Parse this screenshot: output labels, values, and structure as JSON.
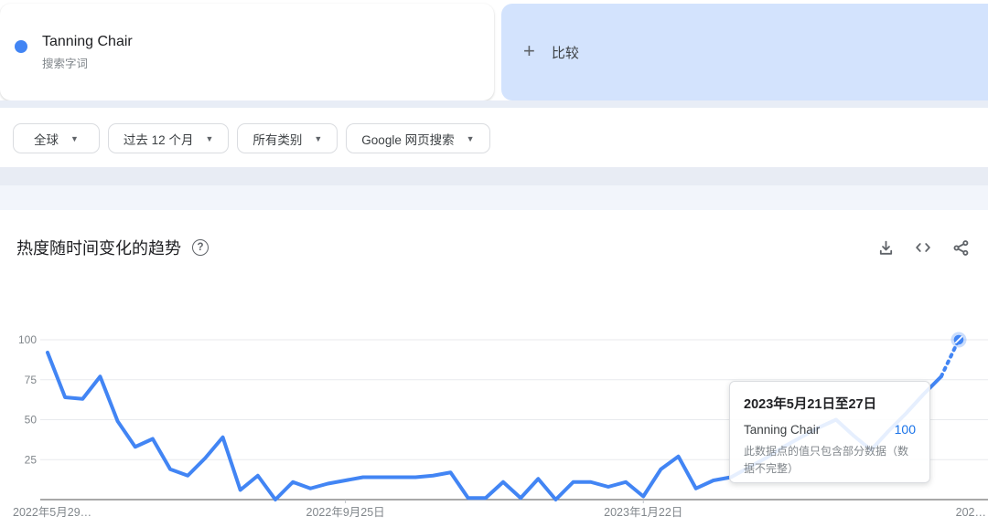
{
  "term_card": {
    "title": "Tanning Chair",
    "subtitle": "搜索字词",
    "dot_color": "#4285f4"
  },
  "compare_card": {
    "plus": "+",
    "label": "比较"
  },
  "filters": {
    "caret": "▼",
    "region": "全球",
    "time": "过去 12 个月",
    "category": "所有类别",
    "search_type": "Google 网页搜索"
  },
  "chart_section": {
    "title": "热度随时间变化的趋势",
    "help_glyph": "?",
    "actions": [
      "download",
      "embed-code",
      "share"
    ]
  },
  "tooltip": {
    "title": "2023年5月21日至27日",
    "series": "Tanning Chair",
    "value": "100",
    "value_color": "#1a73e8",
    "note": "此数据点的值只包含部分数据（数据不完整）"
  },
  "chart_data": {
    "type": "line",
    "title": "热度随时间变化的趋势",
    "frequency": "weekly",
    "start_week": "2022-05-29",
    "end_week": "2023-05-21",
    "ylim": [
      0,
      100
    ],
    "y_ticks": [
      25,
      50,
      75,
      100
    ],
    "grid": true,
    "legend_position": "none",
    "line_color": "#4285f4",
    "incomplete_last_segment": true,
    "hovered_point": {
      "index": 52,
      "value": 100
    },
    "x_tick_labels": [
      {
        "index": 0,
        "label": "2022年5月29…",
        "align": "start"
      },
      {
        "index": 17,
        "label": "2022年9月25日",
        "align": "middle"
      },
      {
        "index": 34,
        "label": "2023年1月22日",
        "align": "middle"
      },
      {
        "index": 52,
        "label": "202…",
        "align": "end"
      }
    ],
    "series": [
      {
        "name": "Tanning Chair",
        "values": [
          92,
          64,
          63,
          77,
          49,
          33,
          38,
          19,
          15,
          26,
          39,
          6,
          15,
          0,
          11,
          7,
          10,
          12,
          14,
          14,
          14,
          14,
          15,
          17,
          1,
          1,
          11,
          1,
          13,
          0,
          11,
          11,
          8,
          11,
          2,
          19,
          27,
          7,
          12,
          14,
          20,
          26,
          33,
          39,
          45,
          50,
          40,
          31,
          43,
          54,
          66,
          77,
          100
        ]
      }
    ]
  }
}
